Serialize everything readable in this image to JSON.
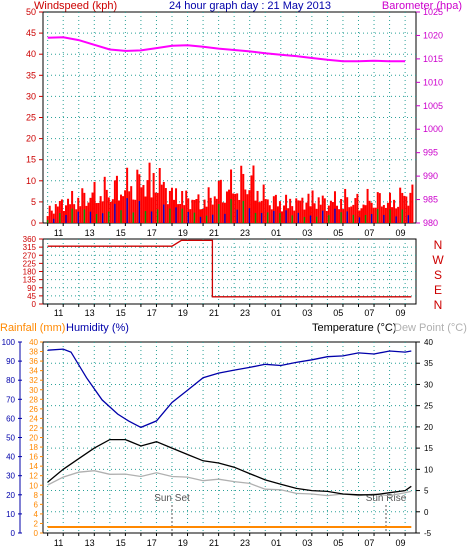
{
  "header": {
    "left_label": "Windspeed (kph)",
    "title": "24 hour graph day : 21 May 2013",
    "right_label": "Barometer (hpa)"
  },
  "wind_dir_letters": [
    "N",
    "W",
    "S",
    "E",
    "N"
  ],
  "bottom_header": {
    "rainfall": "Rainfall (mm)",
    "humidity": "Humidity (%)",
    "temperature": "Temperature (°C)",
    "dewpoint": "Dew Point (°C)"
  },
  "annotations": {
    "sunset": "Sun Set",
    "sunrise": "Sun Rise"
  },
  "colors": {
    "wind": "#ff0000",
    "gust_blue": "#0000cc",
    "gust_green": "#009900",
    "barometer": "#ff00ff",
    "direction": "#cc0000",
    "humidity": "#0000aa",
    "temperature": "#000000",
    "dewpoint": "#b0b0b0",
    "rainfall": "#ff8800",
    "grid": "#2aa198",
    "axis_left_top": "#cc0000",
    "axis_right_top": "#cc00cc",
    "axis_left_bottom": "#0000aa",
    "axis_rain": "#ff8800"
  },
  "chart_data": [
    {
      "type": "bar",
      "title": "24 hour graph day : 21 May 2013",
      "xlabel": "",
      "ylabel": "Windspeed (kph)",
      "y2label": "Barometer (hpa)",
      "x_ticks": [
        "11",
        "13",
        "15",
        "17",
        "19",
        "21",
        "23",
        "01",
        "03",
        "05",
        "07",
        "09"
      ],
      "ylim": [
        0,
        50
      ],
      "y_ticks": [
        0,
        5,
        10,
        15,
        20,
        25,
        30,
        35,
        40,
        45,
        50
      ],
      "y2lim": [
        980,
        1025
      ],
      "y2_ticks": [
        980,
        985,
        990,
        995,
        1000,
        1005,
        1010,
        1015,
        1020,
        1025
      ],
      "grid": true,
      "series": [
        {
          "name": "Windspeed (kph)",
          "x_hours": [
            0,
            1,
            2,
            3,
            4,
            5,
            6,
            7,
            8,
            9,
            10,
            11,
            12,
            13,
            14,
            15,
            16,
            17,
            18,
            19,
            20,
            21,
            22,
            23
          ],
          "values": [
            3,
            5,
            6,
            7,
            8,
            9,
            10,
            11,
            7,
            6,
            5,
            8,
            9,
            11,
            6,
            5,
            5,
            6,
            5,
            6,
            5,
            6,
            5,
            7
          ]
        },
        {
          "name": "Barometer (hpa)",
          "x_hours": [
            0,
            1,
            2,
            3,
            4,
            5,
            6,
            7,
            8,
            9,
            10,
            11,
            12,
            13,
            14,
            15,
            16,
            17,
            18,
            19,
            20,
            21,
            22,
            23
          ],
          "values": [
            1019.5,
            1019.6,
            1019,
            1018,
            1017,
            1016.7,
            1016.8,
            1017.3,
            1017.8,
            1017.9,
            1017.6,
            1017.2,
            1016.9,
            1016.6,
            1016.2,
            1015.9,
            1015.6,
            1015.2,
            1014.8,
            1014.5,
            1014.5,
            1014.6,
            1014.5,
            1014.5
          ]
        }
      ]
    },
    {
      "type": "line",
      "ylabel": "",
      "ylim": [
        0,
        360
      ],
      "y_ticks": [
        0,
        45,
        90,
        135,
        180,
        225,
        270,
        315,
        360
      ],
      "x_ticks": [
        "11",
        "13",
        "15",
        "17",
        "19",
        "21",
        "23",
        "01",
        "03",
        "05",
        "07",
        "09"
      ],
      "series": [
        {
          "name": "Wind direction",
          "x_hours": [
            0,
            8.0,
            8.6,
            10.6,
            10.6,
            23.4
          ],
          "values": [
            320,
            320,
            352,
            352,
            40,
            40
          ]
        }
      ]
    },
    {
      "type": "line",
      "x_ticks": [
        "11",
        "13",
        "15",
        "17",
        "19",
        "21",
        "23",
        "01",
        "03",
        "05",
        "07",
        "09"
      ],
      "series": [
        {
          "name": "Humidity (%)",
          "axis": "humidity",
          "ylim": [
            0,
            100
          ],
          "y_ticks": [
            0,
            10,
            20,
            30,
            40,
            50,
            60,
            70,
            80,
            90,
            100
          ],
          "x_hours": [
            0,
            1,
            1.5,
            2.5,
            3.5,
            4.5,
            5.2,
            6,
            7,
            8,
            9,
            10,
            11,
            12,
            13,
            14,
            15,
            16,
            17,
            18,
            19,
            20,
            21,
            22,
            23,
            23.4
          ],
          "values": [
            96,
            96,
            95,
            81,
            70,
            62,
            59,
            55,
            59,
            68,
            75,
            81,
            84,
            85,
            87,
            88,
            88,
            89,
            91,
            92,
            93,
            94,
            94,
            95,
            95,
            95
          ]
        },
        {
          "name": "Temperature (°C)",
          "axis": "temperature",
          "ylim": [
            -5,
            40
          ],
          "y_ticks": [
            -5,
            0,
            5,
            10,
            15,
            20,
            25,
            30,
            35,
            40
          ],
          "x_hours": [
            0,
            1,
            2,
            3,
            4,
            5,
            6,
            7,
            8,
            9,
            10,
            11,
            12,
            13,
            14,
            15,
            16,
            17,
            18,
            19,
            20,
            21,
            22,
            23,
            23.4
          ],
          "values": [
            7,
            10,
            12.5,
            15,
            17,
            17,
            15.5,
            16.5,
            15,
            13.5,
            12,
            11.5,
            10.5,
            9,
            7.5,
            6.5,
            5.5,
            5,
            4.8,
            4.2,
            4,
            4,
            4.5,
            5,
            6
          ]
        },
        {
          "name": "Dew Point (°C)",
          "axis": "temperature",
          "x_hours": [
            0,
            1,
            2,
            3,
            4,
            5,
            6,
            7,
            8,
            9,
            10,
            11,
            12,
            13,
            14,
            15,
            16,
            17,
            18,
            19,
            20,
            21,
            22,
            23,
            23.4
          ],
          "values": [
            6.5,
            8,
            9.5,
            9.5,
            9,
            8.7,
            8.5,
            9,
            8.5,
            8,
            7.5,
            7.5,
            7.3,
            6.5,
            5.5,
            5,
            4.5,
            4,
            4,
            4,
            4,
            4,
            4,
            4.3,
            5
          ]
        },
        {
          "name": "Rainfall (mm)",
          "axis": "rainfall",
          "ylim": [
            0,
            40
          ],
          "y_ticks": [
            0,
            2,
            4,
            6,
            8,
            10,
            12,
            14,
            16,
            18,
            20,
            22,
            24,
            26,
            28,
            30,
            32,
            34,
            36,
            38,
            40
          ],
          "x_hours": [
            0,
            23.4
          ],
          "values": [
            0,
            0
          ]
        }
      ]
    }
  ]
}
